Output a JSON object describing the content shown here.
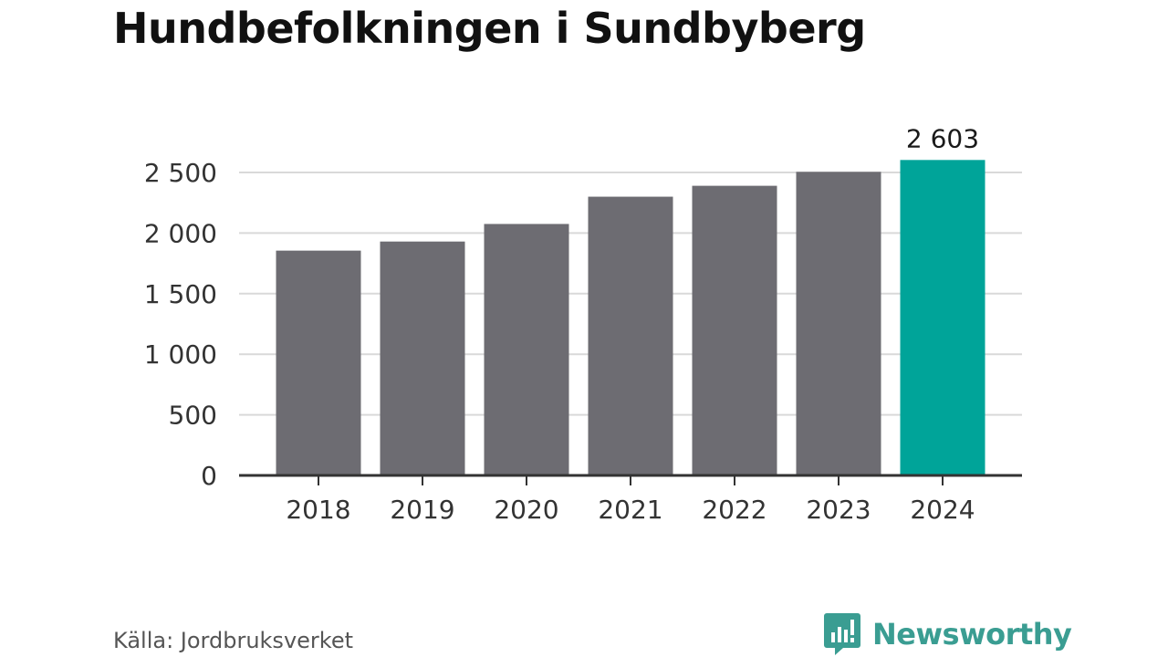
{
  "title": "Hundbefolkningen i Sundbyberg",
  "source": "Källa: Jordbruksverket",
  "brand": {
    "name": "Newsworthy",
    "icon": "newsworthy-logo-icon"
  },
  "colors": {
    "bar": "#6d6c72",
    "highlight": "#00a499",
    "grid": "#d9d9d9",
    "axis": "#333333",
    "brand": "#3a9d92"
  },
  "chart_data": {
    "type": "bar",
    "categories": [
      "2018",
      "2019",
      "2020",
      "2021",
      "2022",
      "2023",
      "2024"
    ],
    "values": [
      1855,
      1930,
      2075,
      2300,
      2390,
      2505,
      2603
    ],
    "highlight_index": 6,
    "data_labels": [
      {
        "index": 6,
        "text": "2 603"
      }
    ],
    "ylim": [
      0,
      2700
    ],
    "yticks": [
      0,
      500,
      1000,
      1500,
      2000,
      2500
    ],
    "ytick_labels": [
      "0",
      "500",
      "1 000",
      "1 500",
      "2 000",
      "2 500"
    ],
    "grid": true,
    "xlabel": "",
    "ylabel": ""
  }
}
